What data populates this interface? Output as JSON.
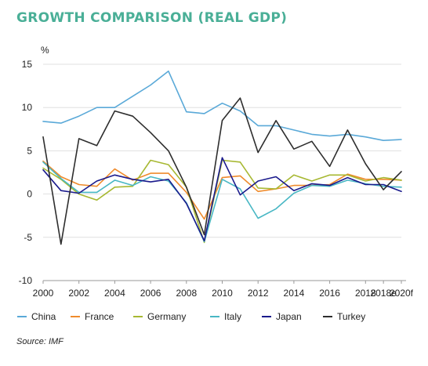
{
  "title": "GROWTH COMPARISON (REAL GDP)",
  "source": "Source: IMF",
  "colors": {
    "China": "#5aa9d8",
    "France": "#ef8b2c",
    "Germany": "#a7b832",
    "Italy": "#48b7c4",
    "Japan": "#1a1a8c",
    "Turkey": "#2e2e2e",
    "axis": "#999999"
  },
  "chart_data": {
    "type": "line",
    "ylabel": "%",
    "ylim": [
      -10,
      15
    ],
    "yticks": [
      15,
      10,
      5,
      0,
      -5,
      -10
    ],
    "xlim": [
      2000,
      2020
    ],
    "x_tick_labels": [
      "2000",
      "2002",
      "2004",
      "2006",
      "2008",
      "2010",
      "2012",
      "2014",
      "2016",
      "2018",
      "2018e",
      "2020f"
    ],
    "x_tick_positions": [
      2000,
      2002,
      2004,
      2006,
      2008,
      2010,
      2012,
      2014,
      2016,
      2018,
      2019,
      2020
    ],
    "x": [
      2000,
      2001,
      2002,
      2003,
      2004,
      2005,
      2006,
      2007,
      2008,
      2009,
      2010,
      2011,
      2012,
      2013,
      2014,
      2015,
      2016,
      2017,
      2018,
      2019,
      2020
    ],
    "grid": "horizontal",
    "legend_position": "bottom",
    "series": [
      {
        "name": "China",
        "values": [
          8.4,
          8.2,
          9.0,
          10.0,
          10.0,
          11.3,
          12.6,
          14.2,
          9.5,
          9.3,
          10.5,
          9.6,
          7.9,
          7.9,
          7.4,
          6.9,
          6.7,
          6.9,
          6.6,
          6.2,
          6.3
        ]
      },
      {
        "name": "France",
        "values": [
          3.8,
          2.0,
          1.1,
          0.9,
          2.9,
          1.6,
          2.4,
          2.4,
          0.2,
          -2.9,
          1.9,
          2.1,
          0.3,
          0.6,
          1.0,
          1.0,
          1.1,
          2.3,
          1.7,
          1.7,
          1.6
        ]
      },
      {
        "name": "Germany",
        "values": [
          3.0,
          1.7,
          0.0,
          -0.7,
          0.8,
          0.9,
          3.9,
          3.4,
          0.8,
          -5.6,
          3.9,
          3.7,
          0.7,
          0.6,
          2.2,
          1.5,
          2.2,
          2.2,
          1.5,
          1.9,
          1.6
        ]
      },
      {
        "name": "Italy",
        "values": [
          3.7,
          1.8,
          0.2,
          0.2,
          1.6,
          1.0,
          2.0,
          1.5,
          -1.0,
          -5.5,
          1.7,
          0.6,
          -2.8,
          -1.7,
          0.1,
          1.0,
          0.9,
          1.6,
          1.2,
          0.9,
          0.8
        ]
      },
      {
        "name": "Japan",
        "values": [
          2.8,
          0.4,
          0.1,
          1.5,
          2.2,
          1.7,
          1.4,
          1.7,
          -1.1,
          -5.4,
          4.2,
          -0.1,
          1.5,
          2.0,
          0.4,
          1.2,
          1.0,
          1.9,
          1.1,
          1.1,
          0.3
        ]
      },
      {
        "name": "Turkey",
        "values": [
          6.6,
          -5.8,
          6.4,
          5.6,
          9.6,
          9.0,
          7.1,
          5.0,
          0.8,
          -4.7,
          8.5,
          11.1,
          4.8,
          8.5,
          5.2,
          6.1,
          3.2,
          7.4,
          3.5,
          0.5,
          2.6
        ]
      }
    ]
  }
}
